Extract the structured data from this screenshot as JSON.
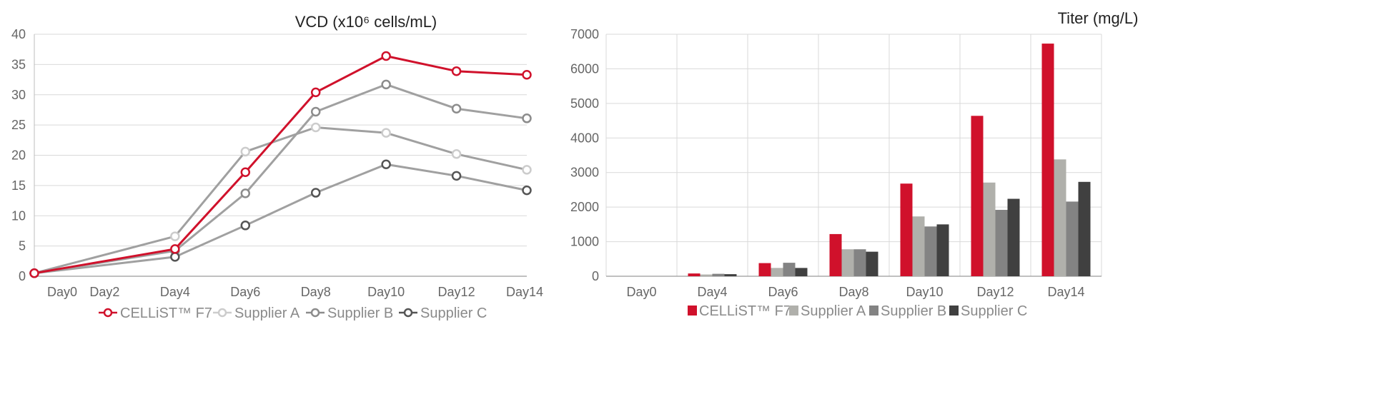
{
  "chart_data": [
    {
      "type": "line",
      "title": "VCD (x10⁶ cells/mL)",
      "categories": [
        "Day0",
        "Day2",
        "Day4",
        "Day6",
        "Day8",
        "Day10",
        "Day12",
        "Day14"
      ],
      "x": [
        0,
        2,
        4,
        6,
        8,
        10,
        12,
        14
      ],
      "yticks": [
        "0",
        "5",
        "10",
        "15",
        "20",
        "25",
        "30",
        "35",
        "40"
      ],
      "ylim": [
        0,
        40
      ],
      "grid": true,
      "legend": "bottom",
      "series": [
        {
          "name": "CELLiST™ F7",
          "color": "#d0112b",
          "x": [
            0,
            4,
            6,
            8,
            10,
            12,
            14
          ],
          "values": [
            0.5,
            4.5,
            17.2,
            30.4,
            36.4,
            33.9,
            33.3
          ]
        },
        {
          "name": "Supplier A",
          "color": "#cccccc",
          "x": [
            0,
            4,
            6,
            8,
            10,
            12,
            14
          ],
          "values": [
            0.5,
            6.6,
            20.6,
            24.6,
            23.7,
            20.2,
            17.6
          ]
        },
        {
          "name": "Supplier B",
          "color": "#8c8c8c",
          "x": [
            0,
            4,
            6,
            8,
            10,
            12,
            14
          ],
          "values": [
            0.5,
            4.2,
            13.7,
            27.2,
            31.7,
            27.7,
            26.1
          ]
        },
        {
          "name": "Supplier C",
          "color": "#555555",
          "x": [
            0,
            4,
            6,
            8,
            10,
            12,
            14
          ],
          "values": [
            0.5,
            3.2,
            8.4,
            13.8,
            18.5,
            16.6,
            14.2
          ]
        }
      ]
    },
    {
      "type": "bar",
      "title": "Titer (mg/L)",
      "categories": [
        "Day0",
        "Day4",
        "Day6",
        "Day8",
        "Day10",
        "Day12",
        "Day14"
      ],
      "yticks": [
        "0",
        "1000",
        "2000",
        "3000",
        "4000",
        "5000",
        "6000",
        "7000"
      ],
      "ylim": [
        0,
        7000
      ],
      "grid": true,
      "legend": "bottom",
      "series": [
        {
          "name": "CELLiST™ F7",
          "color": "#d0112b",
          "values": [
            0,
            80,
            380,
            1220,
            2680,
            4640,
            6730
          ]
        },
        {
          "name": "Supplier A",
          "color": "#b0b0ab",
          "values": [
            0,
            50,
            240,
            780,
            1730,
            2710,
            3380
          ]
        },
        {
          "name": "Supplier B",
          "color": "#838383",
          "values": [
            0,
            70,
            390,
            780,
            1440,
            1920,
            2160
          ]
        },
        {
          "name": "Supplier C",
          "color": "#404040",
          "values": [
            0,
            60,
            240,
            710,
            1500,
            2240,
            2730
          ]
        }
      ]
    }
  ]
}
